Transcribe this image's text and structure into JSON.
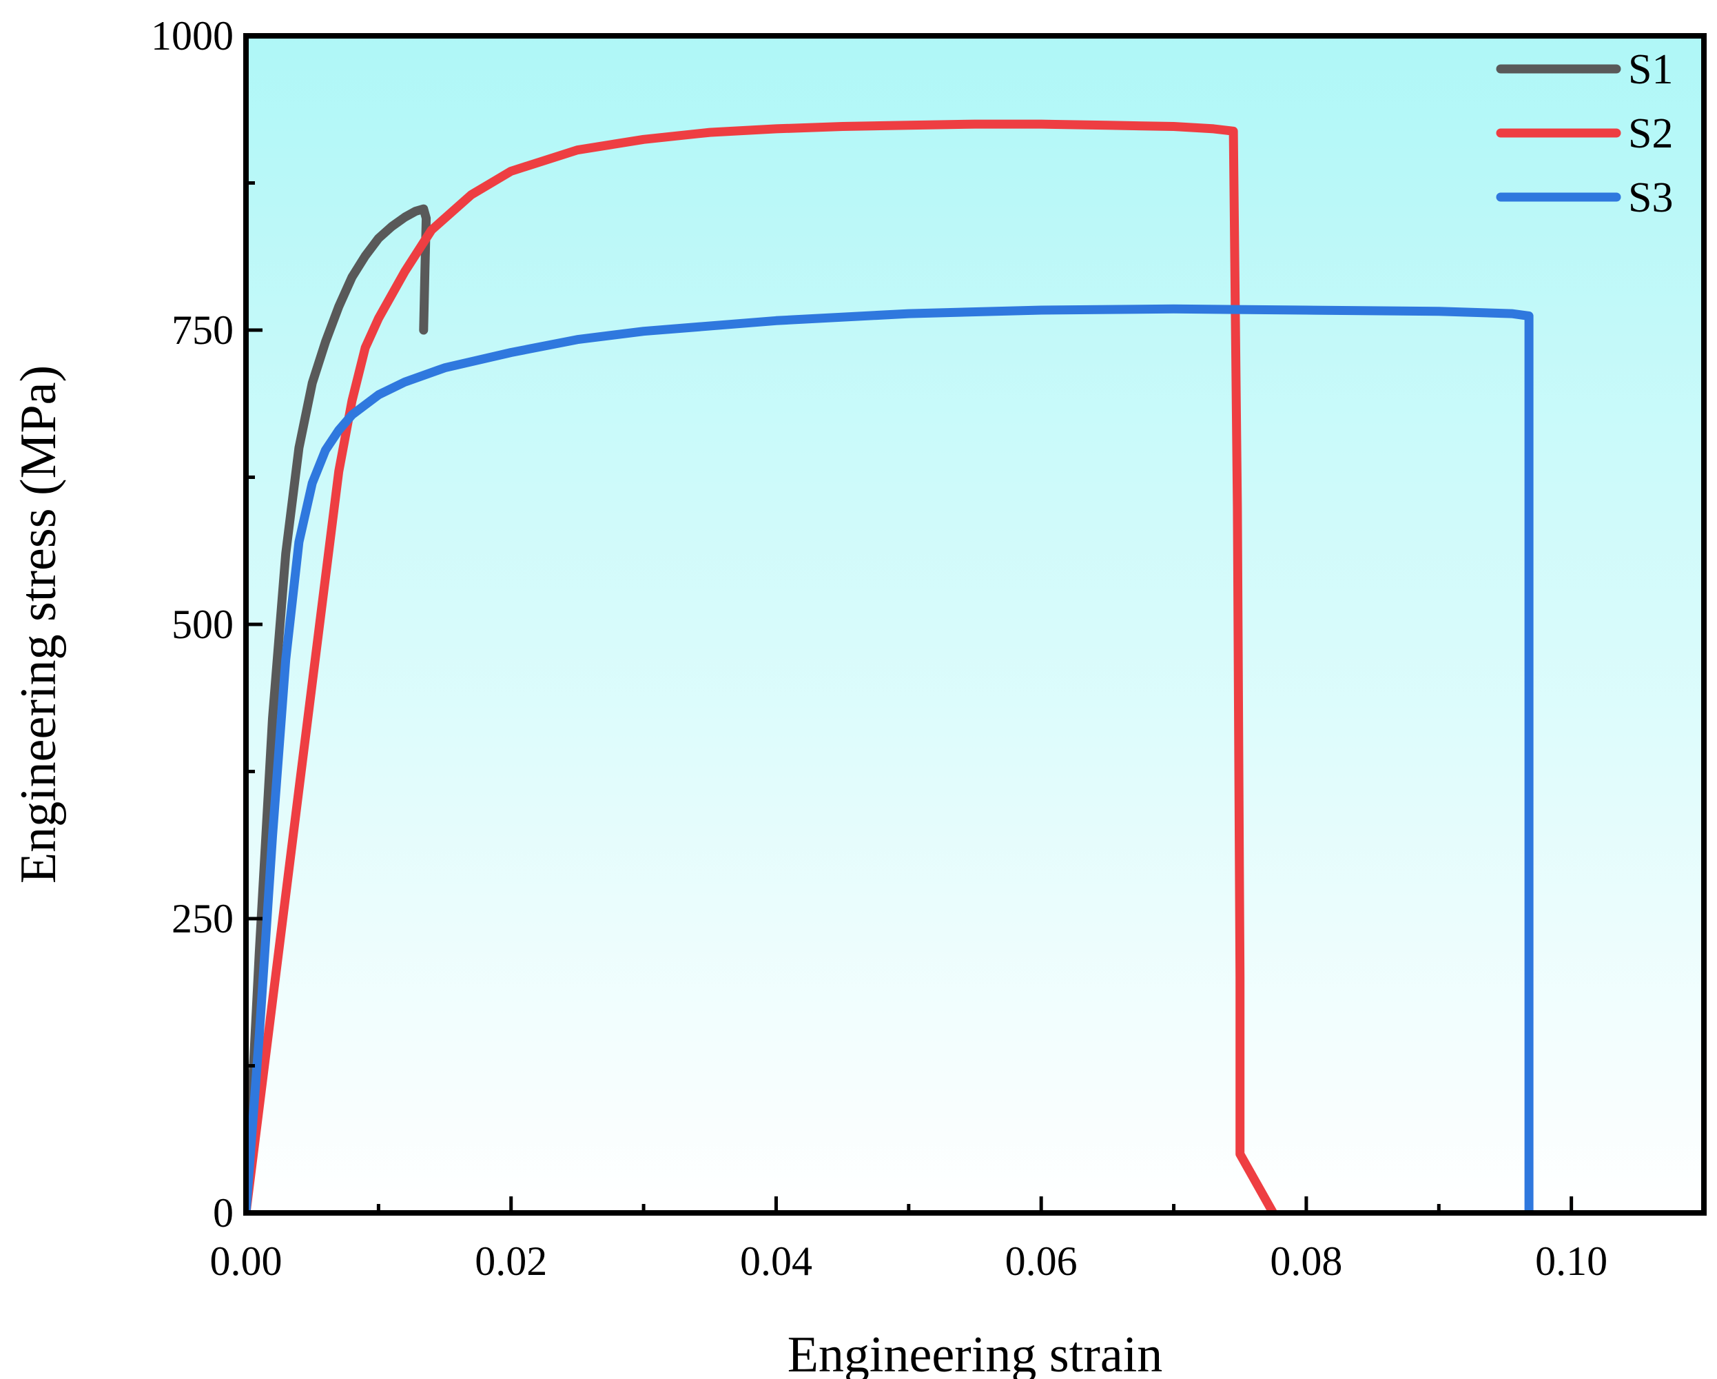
{
  "chart_data": {
    "type": "line",
    "title": "",
    "xlabel": "Engineering strain",
    "ylabel": "Engineering stress (MPa)",
    "xlim": [
      0,
      0.11
    ],
    "ylim": [
      0,
      1000
    ],
    "xticks": [
      0.0,
      0.02,
      0.04,
      0.06,
      0.08,
      0.1
    ],
    "xtick_labels": [
      "0.00",
      "0.02",
      "0.04",
      "0.06",
      "0.08",
      "0.10"
    ],
    "yticks": [
      0,
      250,
      500,
      750,
      1000
    ],
    "ytick_labels": [
      "0",
      "250",
      "500",
      "750",
      "1000"
    ],
    "grid": false,
    "legend_position": "top-right",
    "background": {
      "top": "#aff7f7",
      "bottom": "#ffffff"
    },
    "series": [
      {
        "name": "S1",
        "color": "#595959",
        "x": [
          0,
          0.001,
          0.002,
          0.003,
          0.004,
          0.005,
          0.006,
          0.007,
          0.008,
          0.009,
          0.01,
          0.011,
          0.012,
          0.0128,
          0.0134,
          0.0136,
          0.0135,
          0.0134
        ],
        "y": [
          0,
          220,
          420,
          560,
          650,
          705,
          740,
          770,
          795,
          813,
          828,
          838,
          846,
          851,
          853,
          845,
          800,
          750
        ]
      },
      {
        "name": "S2",
        "color": "#ee3e42",
        "x": [
          0,
          0.002,
          0.004,
          0.006,
          0.007,
          0.008,
          0.009,
          0.01,
          0.012,
          0.014,
          0.017,
          0.02,
          0.025,
          0.03,
          0.035,
          0.04,
          0.045,
          0.05,
          0.055,
          0.06,
          0.065,
          0.07,
          0.073,
          0.0745,
          0.0748,
          0.075,
          0.075,
          0.0775
        ],
        "y": [
          0,
          180,
          360,
          540,
          630,
          690,
          735,
          760,
          800,
          835,
          865,
          885,
          903,
          912,
          918,
          921,
          923,
          924,
          925,
          925,
          924,
          923,
          921,
          919,
          600,
          200,
          50,
          0
        ]
      },
      {
        "name": "S3",
        "color": "#2f78de",
        "x": [
          0,
          0.001,
          0.002,
          0.003,
          0.004,
          0.005,
          0.006,
          0.007,
          0.008,
          0.01,
          0.012,
          0.015,
          0.02,
          0.025,
          0.03,
          0.04,
          0.05,
          0.06,
          0.07,
          0.08,
          0.09,
          0.0955,
          0.0968,
          0.0968,
          0.0968
        ],
        "y": [
          0,
          150,
          320,
          470,
          570,
          620,
          648,
          665,
          678,
          695,
          706,
          718,
          731,
          742,
          749,
          758,
          764,
          767,
          768,
          767,
          766,
          764,
          762,
          400,
          0
        ]
      }
    ]
  }
}
